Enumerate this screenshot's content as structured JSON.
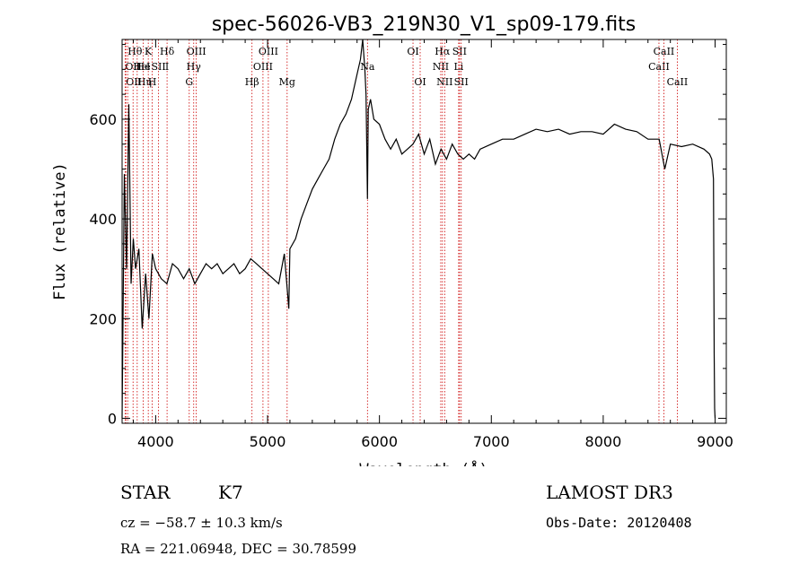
{
  "chart_data": {
    "type": "line",
    "title": "spec-56026-VB3_219N30_V1_sp09-179.fits",
    "xlabel": "Wavelength (Å)",
    "ylabel": "Flux (relative)",
    "xlim": [
      3700,
      9100
    ],
    "ylim": [
      -10,
      760
    ],
    "xticks": [
      4000,
      5000,
      6000,
      7000,
      8000,
      9000
    ],
    "yticks": [
      0,
      200,
      400,
      600
    ],
    "grid": false,
    "series": [
      {
        "name": "flux",
        "x": [
          3700,
          3720,
          3740,
          3760,
          3780,
          3800,
          3820,
          3850,
          3880,
          3910,
          3940,
          3970,
          4000,
          4050,
          4100,
          4150,
          4200,
          4250,
          4300,
          4350,
          4400,
          4450,
          4500,
          4550,
          4600,
          4650,
          4700,
          4750,
          4800,
          4850,
          4900,
          4950,
          5000,
          5050,
          5100,
          5150,
          5190,
          5200,
          5250,
          5300,
          5350,
          5400,
          5450,
          5500,
          5550,
          5600,
          5650,
          5700,
          5750,
          5800,
          5830,
          5850,
          5870,
          5880,
          5893,
          5900,
          5920,
          5950,
          6000,
          6050,
          6100,
          6150,
          6200,
          6250,
          6300,
          6350,
          6400,
          6450,
          6500,
          6550,
          6600,
          6650,
          6700,
          6750,
          6800,
          6850,
          6900,
          7000,
          7100,
          7200,
          7300,
          7400,
          7500,
          7600,
          7700,
          7800,
          7900,
          8000,
          8100,
          8200,
          8300,
          8400,
          8500,
          8550,
          8600,
          8700,
          8800,
          8900,
          8950,
          8970,
          8985,
          8992,
          8996,
          9000
        ],
        "y": [
          0,
          490,
          300,
          630,
          270,
          360,
          300,
          340,
          180,
          290,
          200,
          330,
          300,
          280,
          270,
          310,
          300,
          280,
          300,
          270,
          290,
          310,
          300,
          310,
          290,
          300,
          310,
          290,
          300,
          320,
          310,
          300,
          290,
          280,
          270,
          330,
          220,
          340,
          360,
          400,
          430,
          460,
          480,
          500,
          520,
          560,
          590,
          610,
          640,
          690,
          720,
          760,
          700,
          650,
          440,
          620,
          640,
          600,
          590,
          560,
          540,
          560,
          530,
          540,
          550,
          570,
          530,
          560,
          510,
          540,
          520,
          550,
          530,
          520,
          530,
          520,
          540,
          550,
          560,
          560,
          570,
          580,
          575,
          580,
          570,
          575,
          575,
          570,
          590,
          580,
          575,
          560,
          560,
          500,
          550,
          545,
          550,
          540,
          530,
          520,
          480,
          130,
          20,
          0
        ]
      }
    ],
    "line_markers": [
      {
        "x": 3727,
        "label": "OII",
        "row": 2,
        "align": "start"
      },
      {
        "x": 3734,
        "label": "OII",
        "row": 3,
        "align": "start"
      },
      {
        "x": 3750,
        "label": "Hθ",
        "row": 1,
        "align": "start"
      },
      {
        "x": 3798,
        "label": "He",
        "row": 2,
        "align": "start"
      },
      {
        "x": 3835,
        "label": "Hη",
        "row": 3,
        "align": "start"
      },
      {
        "x": 3889,
        "label": "He",
        "row": 2,
        "align": "middle"
      },
      {
        "x": 3934,
        "label": "K",
        "row": 1,
        "align": "middle"
      },
      {
        "x": 3934,
        "label": "I",
        "row": 2,
        "align": "middle"
      },
      {
        "x": 3969,
        "label": "H",
        "row": 3,
        "align": "middle"
      },
      {
        "x": 4026,
        "label": "SII",
        "row": 2,
        "align": "middle"
      },
      {
        "x": 4102,
        "label": "Hδ",
        "row": 1,
        "align": "middle"
      },
      {
        "x": 4102,
        "label": "I",
        "row": 2,
        "align": "middle"
      },
      {
        "x": 4300,
        "label": "G",
        "row": 3,
        "align": "middle"
      },
      {
        "x": 4340,
        "label": "Hγ",
        "row": 2,
        "align": "middle"
      },
      {
        "x": 4363,
        "label": "OIII",
        "row": 1,
        "align": "middle"
      },
      {
        "x": 4861,
        "label": "Hβ",
        "row": 3,
        "align": "middle"
      },
      {
        "x": 4959,
        "label": "OIII",
        "row": 2,
        "align": "middle"
      },
      {
        "x": 5007,
        "label": "OIII",
        "row": 1,
        "align": "middle"
      },
      {
        "x": 5175,
        "label": "Mg",
        "row": 3,
        "align": "middle"
      },
      {
        "x": 5893,
        "label": "Na",
        "row": 2,
        "align": "middle"
      },
      {
        "x": 6300,
        "label": "OI",
        "row": 1,
        "align": "middle"
      },
      {
        "x": 6364,
        "label": "OI",
        "row": 3,
        "align": "middle"
      },
      {
        "x": 6548,
        "label": "NII",
        "row": 2,
        "align": "middle"
      },
      {
        "x": 6563,
        "label": "Hα",
        "row": 1,
        "align": "middle"
      },
      {
        "x": 6583,
        "label": "NII",
        "row": 3,
        "align": "middle"
      },
      {
        "x": 6708,
        "label": "Li",
        "row": 2,
        "align": "middle"
      },
      {
        "x": 6716,
        "label": "SII",
        "row": 1,
        "align": "middle"
      },
      {
        "x": 6731,
        "label": "SII",
        "row": 3,
        "align": "middle"
      },
      {
        "x": 8498,
        "label": "CaII",
        "row": 2,
        "align": "middle"
      },
      {
        "x": 8542,
        "label": "CaII",
        "row": 1,
        "align": "middle"
      },
      {
        "x": 8662,
        "label": "CaII",
        "row": 3,
        "align": "middle"
      }
    ]
  },
  "info": {
    "class": "STAR",
    "subclass": "K7",
    "survey": "LAMOST DR3",
    "cz": "cz = −58.7 ± 10.3 km/s",
    "obs_date": "Obs-Date: 20120408",
    "coords": "RA = 221.06948, DEC =  30.78599"
  },
  "colors": {
    "line_marker": "#cc0000",
    "spectrum": "#000000"
  }
}
